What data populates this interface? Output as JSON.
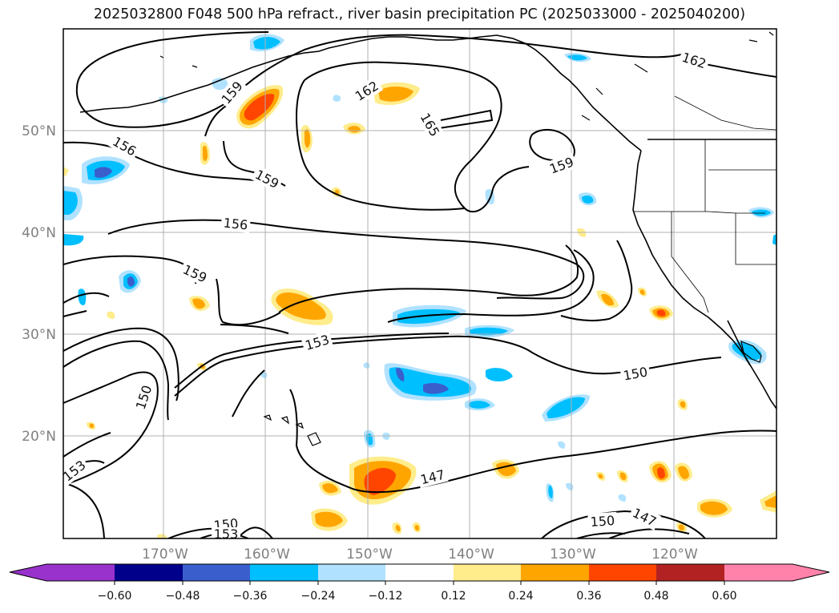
{
  "title": "2025032800 F048 500 hPa refract., river basin precipitation PC (2025033000 - 2025040200)",
  "lat_labels": [
    "50°N",
    "40°N",
    "30°N",
    "20°N"
  ],
  "lon_labels": [
    "170°W",
    "160°W",
    "150°W",
    "140°W",
    "130°W",
    "120°W"
  ],
  "contour_labels": [
    {
      "text": "162",
      "ref": "a"
    },
    {
      "text": "159",
      "ref": "b"
    },
    {
      "text": "162",
      "ref": "c"
    },
    {
      "text": "165",
      "ref": "d"
    },
    {
      "text": "156",
      "ref": "e"
    },
    {
      "text": "159",
      "ref": "f"
    },
    {
      "text": "159",
      "ref": "g"
    },
    {
      "text": "156",
      "ref": "h"
    },
    {
      "text": "159",
      "ref": "i"
    },
    {
      "text": "153",
      "ref": "j"
    },
    {
      "text": "150",
      "ref": "k"
    },
    {
      "text": "150",
      "ref": "l"
    },
    {
      "text": "153",
      "ref": "m"
    },
    {
      "text": "147",
      "ref": "n"
    },
    {
      "text": "150",
      "ref": "o"
    },
    {
      "text": "153",
      "ref": "p"
    },
    {
      "text": "150",
      "ref": "q"
    },
    {
      "text": "147",
      "ref": "r"
    }
  ],
  "colorbar": {
    "ticks": [
      "−0.60",
      "−0.48",
      "−0.36",
      "−0.24",
      "−0.12",
      "0.12",
      "0.24",
      "0.36",
      "0.48",
      "0.60"
    ],
    "colors": [
      "#9932cc",
      "#00008b",
      "#3a5fcd",
      "#00bfff",
      "#b0e2ff",
      "#ffffff",
      "#ffec8b",
      "#ffa500",
      "#ff4500",
      "#b22222",
      "#ff82ab"
    ]
  }
}
